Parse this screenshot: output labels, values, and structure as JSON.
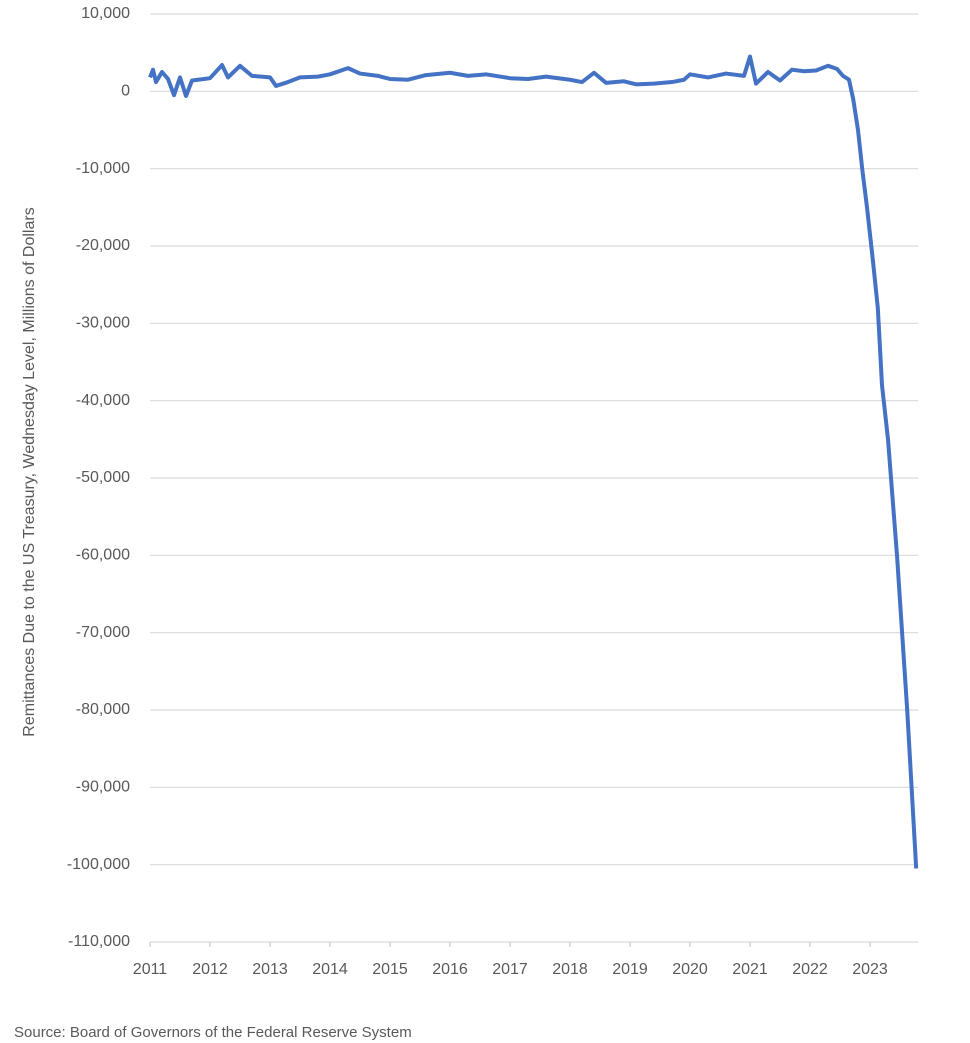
{
  "chart_data": {
    "type": "line",
    "y_label": "Remittances Due to the US Treasury, Wednesday Level, Millions of Dollars",
    "source": "Source: Board of Governors of the Federal Reserve System",
    "x": [
      2011.0,
      2011.05,
      2011.1,
      2011.2,
      2011.3,
      2011.4,
      2011.5,
      2011.6,
      2011.7,
      2011.9,
      2012.0,
      2012.2,
      2012.3,
      2012.5,
      2012.7,
      2013.0,
      2013.1,
      2013.3,
      2013.5,
      2013.8,
      2014.0,
      2014.3,
      2014.5,
      2014.8,
      2015.0,
      2015.3,
      2015.6,
      2016.0,
      2016.3,
      2016.6,
      2017.0,
      2017.3,
      2017.6,
      2018.0,
      2018.2,
      2018.4,
      2018.6,
      2018.9,
      2019.1,
      2019.4,
      2019.7,
      2019.9,
      2020.0,
      2020.3,
      2020.6,
      2020.9,
      2021.0,
      2021.1,
      2021.3,
      2021.5,
      2021.7,
      2021.9,
      2022.1,
      2022.3,
      2022.45,
      2022.55,
      2022.65,
      2022.72,
      2022.8,
      2022.87,
      2022.95,
      2023.05,
      2023.13,
      2023.2,
      2023.3,
      2023.45,
      2023.62,
      2023.77
    ],
    "series": [
      {
        "name": "Remittances",
        "color": "#4472c4",
        "values": [
          1800,
          2800,
          1200,
          2500,
          1600,
          -500,
          1800,
          -600,
          1400,
          1600,
          1700,
          3400,
          1800,
          3300,
          2000,
          1800,
          700,
          1200,
          1800,
          1900,
          2200,
          3000,
          2300,
          2000,
          1600,
          1500,
          2100,
          2400,
          2000,
          2200,
          1700,
          1600,
          1900,
          1500,
          1200,
          2400,
          1100,
          1300,
          900,
          1000,
          1200,
          1500,
          2200,
          1800,
          2300,
          2000,
          4500,
          1000,
          2500,
          1400,
          2800,
          2600,
          2700,
          3300,
          2900,
          2000,
          1500,
          -1000,
          -5000,
          -10000,
          -15000,
          -22000,
          -28000,
          -38000,
          -45000,
          -60000,
          -80000,
          -100500
        ]
      }
    ],
    "xlim": [
      2011,
      2023.8
    ],
    "xticks": [
      2011,
      2012,
      2013,
      2014,
      2015,
      2016,
      2017,
      2018,
      2019,
      2020,
      2021,
      2022,
      2023
    ],
    "ylim": [
      -110000,
      10000
    ],
    "yticks": [
      {
        "value": -110000,
        "label": "-110,000"
      },
      {
        "value": -100000,
        "label": "-100,000"
      },
      {
        "value": -90000,
        "label": "-90,000"
      },
      {
        "value": -80000,
        "label": "-80,000"
      },
      {
        "value": -70000,
        "label": "-70,000"
      },
      {
        "value": -60000,
        "label": "-60,000"
      },
      {
        "value": -50000,
        "label": "-50,000"
      },
      {
        "value": -40000,
        "label": "-40,000"
      },
      {
        "value": -30000,
        "label": "-30,000"
      },
      {
        "value": -20000,
        "label": "-20,000"
      },
      {
        "value": -10000,
        "label": "-10,000"
      },
      0,
      {
        "value": 10000,
        "label": "10,000"
      }
    ],
    "grid": true
  }
}
